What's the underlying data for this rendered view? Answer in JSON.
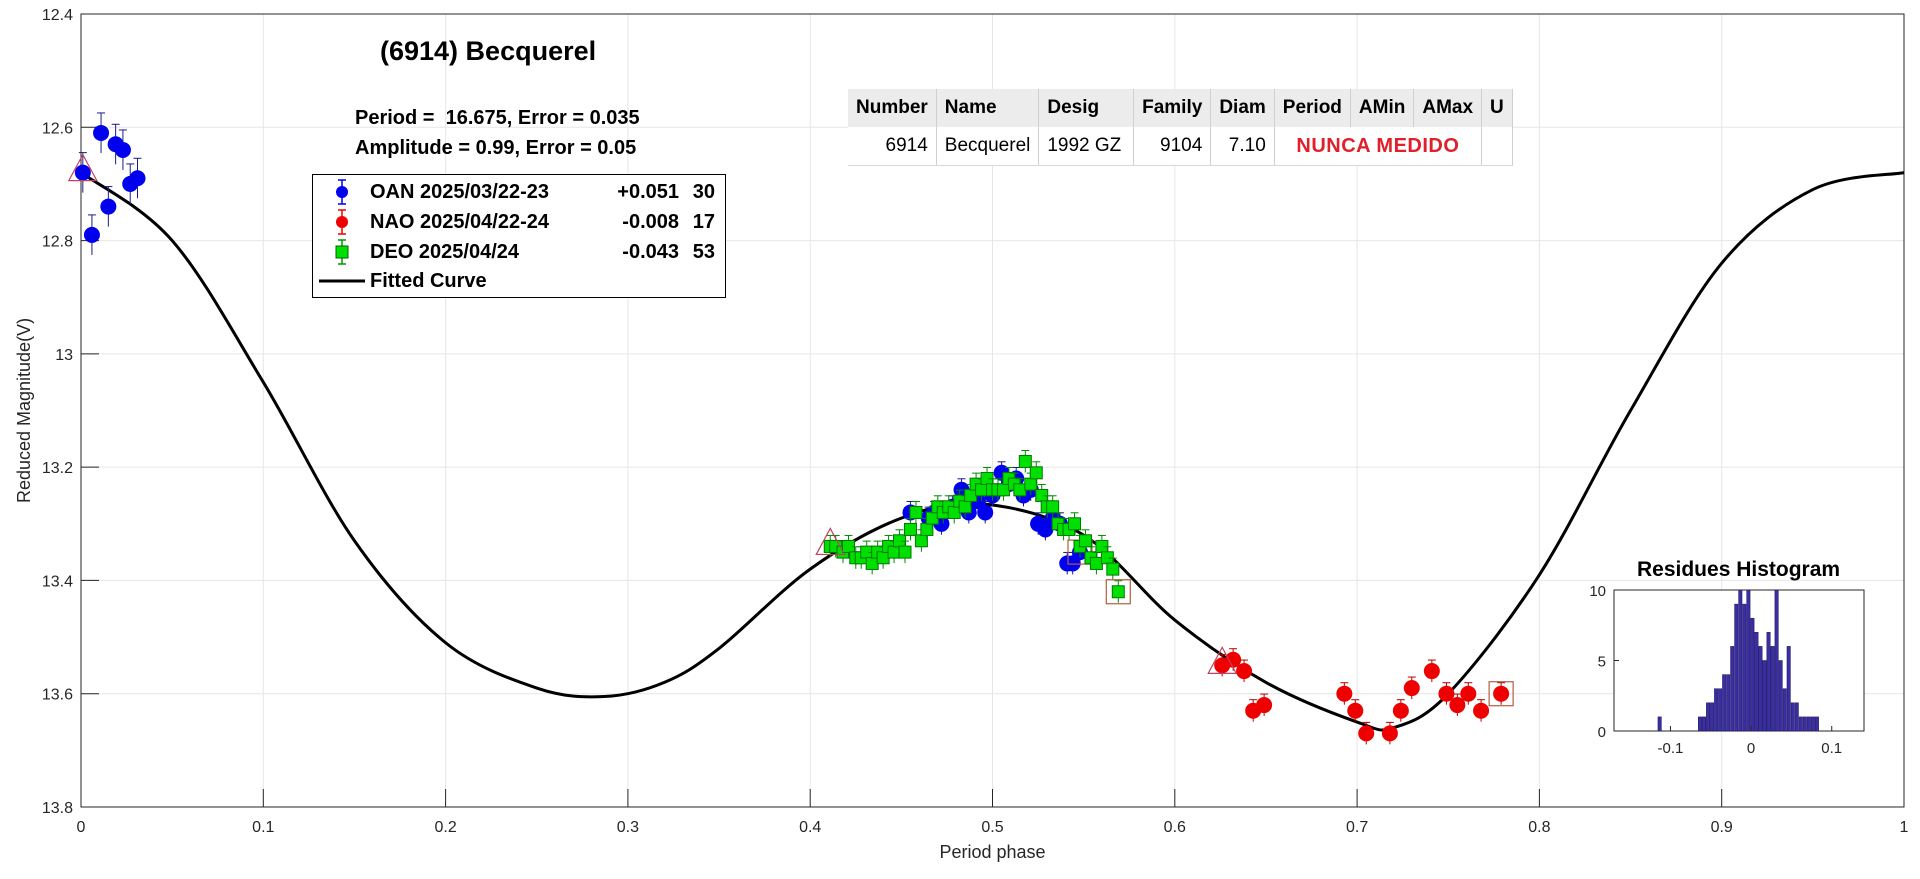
{
  "title": "(6914) Becquerel",
  "fit_info": {
    "period_line": "Period =  16.675, Error = 0.035",
    "amplitude_line": "Amplitude = 0.99, Error = 0.05"
  },
  "legend": [
    {
      "label": "OAN 2025/03/22-23",
      "offset": "+0.051",
      "count": "30",
      "color": "#0000ee",
      "marker": "circle"
    },
    {
      "label": "NAO 2025/04/22-24",
      "offset": "-0.008",
      "count": "17",
      "color": "#ee0000",
      "marker": "circle"
    },
    {
      "label": "DEO 2025/04/24",
      "offset": "-0.043",
      "count": "53",
      "color": "#00e000",
      "marker": "square"
    },
    {
      "label": "Fitted Curve",
      "offset": "",
      "count": "",
      "color": "#000000",
      "marker": "line"
    }
  ],
  "info_table": {
    "headers": [
      "Number",
      "Name",
      "Desig",
      "Family",
      "Diam",
      "Period",
      "AMin",
      "AMax",
      "U"
    ],
    "row": {
      "number": "6914",
      "name": "Becquerel",
      "desig": "1992 GZ",
      "family": "9104",
      "diam": "7.10",
      "status": "NUNCA MEDIDO"
    }
  },
  "chart_data": [
    {
      "type": "scatter",
      "title": "(6914) Becquerel",
      "xlabel": "Period phase",
      "ylabel": "Reduced Magnitude(V)",
      "xlim": [
        0,
        1
      ],
      "ylim": [
        13.8,
        12.4
      ],
      "y_inverted": true,
      "grid": true,
      "legend_position": "top-left",
      "x_ticks": [
        "0",
        "0.1",
        "0.2",
        "0.3",
        "0.4",
        "0.5",
        "0.6",
        "0.7",
        "0.8",
        "0.9",
        "1"
      ],
      "y_ticks": [
        "12.4",
        "12.6",
        "12.8",
        "13",
        "13.2",
        "13.4",
        "13.6",
        "13.8"
      ],
      "series": [
        {
          "name": "OAN 2025/03/22-23",
          "color": "#0000ee",
          "marker": "circle",
          "points": [
            [
              0.001,
              12.68
            ],
            [
              0.006,
              12.79
            ],
            [
              0.011,
              12.61
            ],
            [
              0.015,
              12.74
            ],
            [
              0.019,
              12.63
            ],
            [
              0.023,
              12.64
            ],
            [
              0.027,
              12.7
            ],
            [
              0.031,
              12.69
            ],
            [
              0.455,
              13.28
            ],
            [
              0.465,
              13.29
            ],
            [
              0.468,
              13.28
            ],
            [
              0.472,
              13.3
            ],
            [
              0.478,
              13.27
            ],
            [
              0.483,
              13.24
            ],
            [
              0.487,
              13.28
            ],
            [
              0.492,
              13.26
            ],
            [
              0.496,
              13.28
            ],
            [
              0.5,
              13.25
            ],
            [
              0.505,
              13.21
            ],
            [
              0.509,
              13.23
            ],
            [
              0.513,
              13.22
            ],
            [
              0.517,
              13.25
            ],
            [
              0.521,
              13.24
            ],
            [
              0.525,
              13.3
            ],
            [
              0.529,
              13.31
            ],
            [
              0.533,
              13.29
            ],
            [
              0.537,
              13.3
            ],
            [
              0.541,
              13.37
            ],
            [
              0.544,
              13.37
            ],
            [
              0.548,
              13.35
            ]
          ]
        },
        {
          "name": "NAO 2025/04/22-24",
          "color": "#ee0000",
          "marker": "circle",
          "points": [
            [
              0.626,
              13.55
            ],
            [
              0.632,
              13.54
            ],
            [
              0.638,
              13.56
            ],
            [
              0.643,
              13.63
            ],
            [
              0.649,
              13.62
            ],
            [
              0.693,
              13.6
            ],
            [
              0.699,
              13.63
            ],
            [
              0.705,
              13.67
            ],
            [
              0.718,
              13.67
            ],
            [
              0.724,
              13.63
            ],
            [
              0.73,
              13.59
            ],
            [
              0.741,
              13.56
            ],
            [
              0.749,
              13.6
            ],
            [
              0.755,
              13.62
            ],
            [
              0.761,
              13.6
            ],
            [
              0.768,
              13.63
            ],
            [
              0.779,
              13.6
            ]
          ]
        },
        {
          "name": "DEO 2025/04/24",
          "color": "#00e000",
          "marker": "square",
          "points": [
            [
              0.411,
              13.34
            ],
            [
              0.414,
              13.34
            ],
            [
              0.418,
              13.35
            ],
            [
              0.421,
              13.34
            ],
            [
              0.425,
              13.36
            ],
            [
              0.428,
              13.36
            ],
            [
              0.431,
              13.35
            ],
            [
              0.434,
              13.37
            ],
            [
              0.437,
              13.35
            ],
            [
              0.44,
              13.36
            ],
            [
              0.443,
              13.34
            ],
            [
              0.446,
              13.35
            ],
            [
              0.449,
              13.33
            ],
            [
              0.452,
              13.35
            ],
            [
              0.455,
              13.31
            ],
            [
              0.458,
              13.28
            ],
            [
              0.461,
              13.33
            ],
            [
              0.464,
              13.31
            ],
            [
              0.467,
              13.29
            ],
            [
              0.47,
              13.27
            ],
            [
              0.473,
              13.28
            ],
            [
              0.476,
              13.27
            ],
            [
              0.479,
              13.28
            ],
            [
              0.482,
              13.26
            ],
            [
              0.485,
              13.27
            ],
            [
              0.488,
              13.25
            ],
            [
              0.491,
              13.23
            ],
            [
              0.494,
              13.24
            ],
            [
              0.497,
              13.22
            ],
            [
              0.5,
              13.24
            ],
            [
              0.503,
              13.24
            ],
            [
              0.506,
              13.24
            ],
            [
              0.509,
              13.22
            ],
            [
              0.512,
              13.23
            ],
            [
              0.515,
              13.24
            ],
            [
              0.518,
              13.19
            ],
            [
              0.521,
              13.23
            ],
            [
              0.524,
              13.21
            ],
            [
              0.527,
              13.25
            ],
            [
              0.53,
              13.27
            ],
            [
              0.533,
              13.27
            ],
            [
              0.536,
              13.3
            ],
            [
              0.539,
              13.31
            ],
            [
              0.542,
              13.31
            ],
            [
              0.545,
              13.3
            ],
            [
              0.548,
              13.34
            ],
            [
              0.551,
              13.33
            ],
            [
              0.554,
              13.36
            ],
            [
              0.557,
              13.37
            ],
            [
              0.56,
              13.34
            ],
            [
              0.563,
              13.36
            ],
            [
              0.566,
              13.38
            ],
            [
              0.569,
              13.42
            ]
          ]
        },
        {
          "name": "Fitted Curve",
          "color": "#000000",
          "marker": "line",
          "points": [
            [
              0,
              12.68
            ],
            [
              0.05,
              12.8
            ],
            [
              0.1,
              13.05
            ],
            [
              0.15,
              13.33
            ],
            [
              0.2,
              13.51
            ],
            [
              0.25,
              13.59
            ],
            [
              0.287,
              13.605
            ],
            [
              0.32,
              13.58
            ],
            [
              0.35,
              13.52
            ],
            [
              0.4,
              13.38
            ],
            [
              0.45,
              13.29
            ],
            [
              0.495,
              13.265
            ],
            [
              0.55,
              13.32
            ],
            [
              0.6,
              13.47
            ],
            [
              0.65,
              13.58
            ],
            [
              0.7,
              13.65
            ],
            [
              0.72,
              13.66
            ],
            [
              0.75,
              13.6
            ],
            [
              0.8,
              13.39
            ],
            [
              0.85,
              13.1
            ],
            [
              0.9,
              12.84
            ],
            [
              0.95,
              12.71
            ],
            [
              1.0,
              12.68
            ]
          ]
        }
      ]
    },
    {
      "type": "bar",
      "title": "Residues Histogram",
      "xlabel": "",
      "ylabel": "",
      "xlim": [
        -0.17,
        0.14
      ],
      "ylim": [
        0,
        10
      ],
      "x_ticks": [
        "-0.1",
        "0",
        "0.1"
      ],
      "y_ticks": [
        "0",
        "5",
        "10"
      ],
      "bin_width": 0.005,
      "bins": [
        [
          -0.113,
          1
        ],
        [
          -0.063,
          1
        ],
        [
          -0.058,
          1
        ],
        [
          -0.053,
          2
        ],
        [
          -0.048,
          2
        ],
        [
          -0.043,
          3
        ],
        [
          -0.038,
          3
        ],
        [
          -0.033,
          4
        ],
        [
          -0.028,
          4
        ],
        [
          -0.023,
          6
        ],
        [
          -0.018,
          9
        ],
        [
          -0.013,
          10
        ],
        [
          -0.008,
          9
        ],
        [
          -0.003,
          10
        ],
        [
          0.002,
          8
        ],
        [
          0.007,
          7
        ],
        [
          0.012,
          6
        ],
        [
          0.017,
          5
        ],
        [
          0.022,
          7
        ],
        [
          0.027,
          6
        ],
        [
          0.032,
          10
        ],
        [
          0.037,
          5
        ],
        [
          0.042,
          3
        ],
        [
          0.047,
          6
        ],
        [
          0.052,
          2
        ],
        [
          0.057,
          2
        ],
        [
          0.062,
          1
        ],
        [
          0.067,
          1
        ],
        [
          0.072,
          1
        ],
        [
          0.077,
          1
        ],
        [
          0.082,
          1
        ]
      ],
      "color": "#3a2ea0"
    }
  ]
}
